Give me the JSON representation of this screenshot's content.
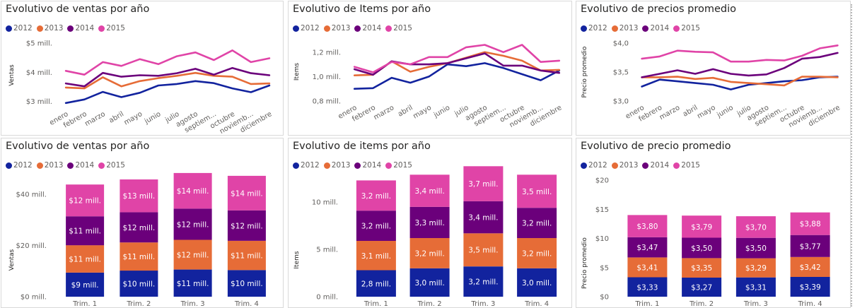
{
  "months": [
    "enero",
    "febrero",
    "marzo",
    "abril",
    "mayo",
    "junio",
    "julio",
    "agosto",
    "septiem...",
    "octubre",
    "noviemb...",
    "diciembre"
  ],
  "quarters": [
    "Trim. 1",
    "Trim. 2",
    "Trim. 3",
    "Trim. 4"
  ],
  "colors": {
    "2012": "#12239e",
    "2013": "#e66c37",
    "2014": "#6b007b",
    "2015": "#e044a7"
  },
  "chart_data": [
    {
      "type": "line",
      "title": "Evolutivo de ventas por año",
      "ylabel": "Ventas",
      "ylim": [
        2.8,
        5.0
      ],
      "yticks": [
        {
          "v": 3,
          "label": "$3 mill."
        },
        {
          "v": 4,
          "label": "$4 mill."
        },
        {
          "v": 5,
          "label": "$5 mill."
        }
      ],
      "series": [
        {
          "name": "2012",
          "values": [
            2.95,
            3.07,
            3.33,
            3.15,
            3.3,
            3.55,
            3.6,
            3.7,
            3.63,
            3.45,
            3.32,
            3.55
          ]
        },
        {
          "name": "2013",
          "values": [
            3.48,
            3.45,
            3.83,
            3.52,
            3.7,
            3.8,
            3.88,
            3.98,
            3.88,
            3.85,
            3.6,
            3.62
          ]
        },
        {
          "name": "2014",
          "values": [
            3.62,
            3.52,
            3.98,
            3.85,
            3.9,
            3.88,
            3.97,
            4.12,
            3.92,
            4.15,
            3.97,
            3.9
          ]
        },
        {
          "name": "2015",
          "values": [
            4.05,
            3.92,
            4.35,
            4.22,
            4.45,
            4.28,
            4.55,
            4.68,
            4.42,
            4.75,
            4.35,
            4.48
          ]
        }
      ]
    },
    {
      "type": "line",
      "title": "Evolutivo de Items por año",
      "ylabel": "Items",
      "ylim": [
        0.8,
        1.28
      ],
      "yticks": [
        {
          "v": 0.8,
          "label": "0,8 mill."
        },
        {
          "v": 1.0,
          "label": "1,0 mill."
        },
        {
          "v": 1.2,
          "label": "1,2 mill."
        }
      ],
      "series": [
        {
          "name": "2012",
          "values": [
            0.9,
            0.905,
            0.99,
            0.95,
            1.0,
            1.1,
            1.085,
            1.11,
            1.07,
            1.02,
            0.97,
            1.05
          ]
        },
        {
          "name": "2013",
          "values": [
            1.01,
            1.015,
            1.125,
            1.04,
            1.08,
            1.11,
            1.155,
            1.2,
            1.17,
            1.13,
            1.05,
            1.055
          ]
        },
        {
          "name": "2014",
          "values": [
            1.06,
            1.015,
            1.125,
            1.1,
            1.1,
            1.11,
            1.15,
            1.19,
            1.09,
            1.09,
            1.05,
            1.03
          ]
        },
        {
          "name": "2015",
          "values": [
            1.08,
            1.035,
            1.12,
            1.1,
            1.16,
            1.16,
            1.24,
            1.26,
            1.2,
            1.26,
            1.12,
            1.13
          ]
        }
      ]
    },
    {
      "type": "line",
      "title": "Evolutivo de precios promedio",
      "ylabel": "Precio promedio",
      "ylim": [
        3.0,
        4.0
      ],
      "yticks": [
        {
          "v": 3.0,
          "label": "$3,0"
        },
        {
          "v": 3.5,
          "label": "$3,5"
        },
        {
          "v": 4.0,
          "label": "$4,0"
        }
      ],
      "series": [
        {
          "name": "2012",
          "values": [
            3.25,
            3.37,
            3.34,
            3.31,
            3.28,
            3.2,
            3.28,
            3.31,
            3.34,
            3.36,
            3.41,
            3.42
          ]
        },
        {
          "name": "2013",
          "values": [
            3.41,
            3.41,
            3.42,
            3.38,
            3.4,
            3.33,
            3.31,
            3.29,
            3.27,
            3.42,
            3.42,
            3.41
          ]
        },
        {
          "name": "2014",
          "values": [
            3.41,
            3.47,
            3.53,
            3.47,
            3.55,
            3.47,
            3.44,
            3.46,
            3.57,
            3.73,
            3.76,
            3.83
          ]
        },
        {
          "name": "2015",
          "values": [
            3.73,
            3.77,
            3.87,
            3.85,
            3.84,
            3.68,
            3.68,
            3.71,
            3.7,
            3.78,
            3.91,
            3.96
          ]
        }
      ]
    },
    {
      "type": "bar",
      "stacked": true,
      "title": "Evolutivo de ventas por año",
      "ylabel": "Ventas",
      "ylim": [
        0,
        48
      ],
      "yticks": [
        {
          "v": 0,
          "label": "$0 mill."
        },
        {
          "v": 20,
          "label": "$20 mill."
        },
        {
          "v": 40,
          "label": "$40 mill."
        }
      ],
      "categories": [
        "Trim. 1",
        "Trim. 2",
        "Trim. 3",
        "Trim. 4"
      ],
      "series": [
        {
          "name": "2012",
          "values": [
            9.4,
            10.2,
            10.6,
            10.4
          ],
          "labels": [
            "$9 mill.",
            "$10 mill.",
            "$11 mill.",
            "$10 mill."
          ]
        },
        {
          "name": "2013",
          "values": [
            10.7,
            11.0,
            11.6,
            11.4
          ],
          "labels": [
            "$11 mill.",
            "$11 mill.",
            "$12 mill.",
            "$11 mill."
          ]
        },
        {
          "name": "2014",
          "values": [
            11.3,
            11.8,
            12.2,
            11.9
          ],
          "labels": [
            "$11 mill.",
            "$12 mill.",
            "$12 mill.",
            "$12 mill."
          ]
        },
        {
          "name": "2015",
          "values": [
            12.4,
            12.8,
            13.9,
            13.5
          ],
          "labels": [
            "$12 mill.",
            "$13 mill.",
            "$14 mill.",
            "$14 mill."
          ]
        }
      ]
    },
    {
      "type": "bar",
      "stacked": true,
      "title": "Evolutivo de items por año",
      "ylabel": "Items",
      "ylim": [
        0,
        13
      ],
      "yticks": [
        {
          "v": 0,
          "label": "0 mill."
        },
        {
          "v": 5,
          "label": "5 mill."
        },
        {
          "v": 10,
          "label": "10 mill."
        }
      ],
      "categories": [
        "Trim. 1",
        "Trim. 2",
        "Trim. 3",
        "Trim. 4"
      ],
      "series": [
        {
          "name": "2012",
          "values": [
            2.8,
            3.0,
            3.2,
            3.0
          ],
          "labels": [
            "2,8 mill.",
            "3,0 mill.",
            "3,2 mill.",
            "3,0 mill."
          ]
        },
        {
          "name": "2013",
          "values": [
            3.1,
            3.2,
            3.5,
            3.2
          ],
          "labels": [
            "3,1 mill.",
            "3,2 mill.",
            "3,5 mill.",
            "3,2 mill."
          ]
        },
        {
          "name": "2014",
          "values": [
            3.2,
            3.3,
            3.4,
            3.2
          ],
          "labels": [
            "3,2 mill.",
            "3,3 mill.",
            "3,4 mill.",
            "3,2 mill."
          ]
        },
        {
          "name": "2015",
          "values": [
            3.2,
            3.4,
            3.7,
            3.5
          ],
          "labels": [
            "3,2 mill.",
            "3,4 mill.",
            "3,7 mill.",
            "3,5 mill."
          ]
        }
      ]
    },
    {
      "type": "bar",
      "stacked": true,
      "title": "Evolutivo de precio promedio",
      "ylabel": "Precio promedio",
      "ylim": [
        0,
        20
      ],
      "yticks": [
        {
          "v": 0,
          "label": "$0"
        },
        {
          "v": 5,
          "label": "$5"
        },
        {
          "v": 10,
          "label": "$10"
        },
        {
          "v": 15,
          "label": "$15"
        },
        {
          "v": 20,
          "label": "$20"
        }
      ],
      "categories": [
        "Trim. 1",
        "Trim. 2",
        "Trim. 3",
        "Trim. 4"
      ],
      "series": [
        {
          "name": "2012",
          "values": [
            3.33,
            3.27,
            3.31,
            3.39
          ],
          "labels": [
            "$3,33",
            "$3,27",
            "$3,31",
            "$3,39"
          ]
        },
        {
          "name": "2013",
          "values": [
            3.41,
            3.35,
            3.29,
            3.42
          ],
          "labels": [
            "$3,41",
            "$3,35",
            "$3,29",
            "$3,42"
          ]
        },
        {
          "name": "2014",
          "values": [
            3.47,
            3.5,
            3.5,
            3.77
          ],
          "labels": [
            "$3,47",
            "$3,50",
            "$3,50",
            "$3,77"
          ]
        },
        {
          "name": "2015",
          "values": [
            3.8,
            3.79,
            3.7,
            3.88
          ],
          "labels": [
            "$3,80",
            "$3,79",
            "$3,70",
            "$3,88"
          ]
        }
      ]
    }
  ]
}
